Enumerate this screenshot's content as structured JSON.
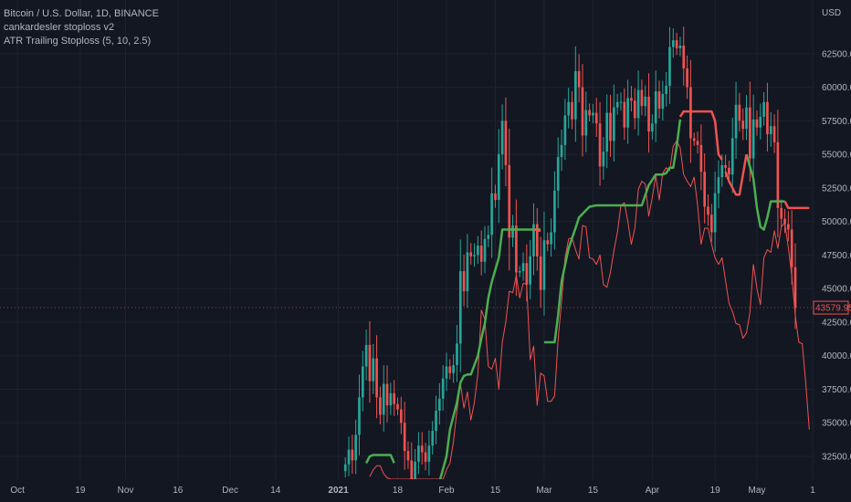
{
  "legend": {
    "symbol": "Bitcoin / U.S. Dollar, 1D, BINANCE",
    "indicator1": "cankardesler stoploss v2",
    "indicator2": "ATR Trailing Stoploss (5, 10, 2.5)"
  },
  "currency_label": "USD",
  "last_price_label": "43579.95",
  "colors": {
    "background": "#131722",
    "grid": "#1e2230",
    "up": "#26a69a",
    "down": "#ef5350",
    "stop_long": "#4caf50",
    "stop_short": "#ef5350",
    "atr_line": "#ef5350",
    "text": "#b2b5be"
  },
  "chart_data": {
    "type": "candlestick",
    "ylim": [
      30800,
      66500
    ],
    "y_ticks": [
      32500,
      35000,
      37500,
      40000,
      42500,
      45000,
      47500,
      50000,
      52500,
      55000,
      57500,
      60000,
      62500
    ],
    "y_tick_labels": [
      "32500.00",
      "35000.00",
      "37500.00",
      "40000.00",
      "42500.00",
      "45000.00",
      "47500.00",
      "50000.00",
      "52500.00",
      "55000.00",
      "57500.00",
      "60000.00",
      "62500.00"
    ],
    "x_ticks": [
      {
        "label": "Oct",
        "x": 0
      },
      {
        "label": "19",
        "x": 18
      },
      {
        "label": "Nov",
        "x": 31
      },
      {
        "label": "16",
        "x": 46
      },
      {
        "label": "Dec",
        "x": 61
      },
      {
        "label": "14",
        "x": 74
      },
      {
        "label": "2021",
        "x": 92
      },
      {
        "label": "18",
        "x": 109
      },
      {
        "label": "Feb",
        "x": 123
      },
      {
        "label": "15",
        "x": 137
      },
      {
        "label": "Mar",
        "x": 151
      },
      {
        "label": "15",
        "x": 165
      },
      {
        "label": "Apr",
        "x": 182
      },
      {
        "label": "19",
        "x": 200
      },
      {
        "label": "May",
        "x": 212
      },
      {
        "label": "1",
        "x": 228
      }
    ],
    "xlim": [
      -5,
      228.5
    ],
    "first_bar_x": 94,
    "closes": [
      31900,
      33000,
      32200,
      34100,
      36900,
      39200,
      40800,
      38100,
      39800,
      36900,
      35600,
      37900,
      36300,
      37200,
      36400,
      36000,
      35000,
      32900,
      32200,
      30400,
      32100,
      33300,
      32800,
      32100,
      33300,
      34400,
      35900,
      36800,
      38300,
      39200,
      38700,
      39300,
      40900,
      46300,
      44800,
      47700,
      47400,
      47500,
      48200,
      47000,
      48700,
      49000,
      52100,
      51600,
      55000,
      57500,
      54200,
      48800,
      49700,
      46200,
      46300,
      46900,
      45300,
      47400,
      49800,
      47400,
      44900,
      48600,
      48300,
      49200,
      52300,
      54800,
      55700,
      57900,
      58900,
      57600,
      61200,
      60000,
      56400,
      58300,
      57900,
      58100,
      57300,
      54100,
      55200,
      58100,
      56000,
      58500,
      58900,
      58900,
      57000,
      59200,
      59000,
      57700,
      59800,
      58600,
      59300,
      56700,
      57300,
      59700,
      58400,
      59500,
      60100,
      63000,
      63500,
      62900,
      63100,
      61400,
      60000,
      56200,
      56000,
      55700,
      53700,
      51100,
      50500,
      49200,
      52100,
      53300,
      54200,
      54000,
      53500,
      56200,
      58700,
      57500,
      56900,
      58500,
      54700,
      57600,
      57000,
      57800,
      58900,
      56500,
      57100,
      55900,
      51000,
      50200,
      49800,
      49400,
      46600,
      43580
    ],
    "long_stop_segments": [
      {
        "x": [
          100,
          101,
          102,
          103,
          104,
          105,
          106,
          107,
          108
        ],
        "y": [
          32000,
          32500,
          32600,
          32600,
          32600,
          32600,
          32600,
          32600,
          32000
        ]
      },
      {
        "x": [
          121,
          123,
          124,
          126,
          127,
          128,
          129,
          130,
          132,
          133,
          134,
          135,
          136,
          138,
          139,
          142,
          144,
          146,
          148,
          150
        ],
        "y": [
          30600,
          32500,
          34500,
          36500,
          38000,
          38500,
          38600,
          38600,
          40000,
          41300,
          42400,
          44300,
          45500,
          47300,
          49400,
          49400,
          49400,
          49400,
          49400,
          49400
        ]
      },
      {
        "x": [
          151,
          152,
          154,
          155,
          156,
          158,
          160,
          161,
          164,
          166,
          168,
          170,
          171,
          172,
          173,
          175,
          176,
          179,
          181,
          183,
          184,
          185,
          186,
          187,
          188,
          189,
          190
        ],
        "y": [
          41000,
          41000,
          41000,
          43000,
          45500,
          48000,
          49500,
          50300,
          51100,
          51200,
          51200,
          51200,
          51200,
          51200,
          51200,
          51200,
          51200,
          51200,
          52700,
          53500,
          53500,
          53500,
          53600,
          54000,
          54000,
          55600,
          57600
        ]
      },
      {
        "x": [
          209,
          210,
          211,
          212,
          213,
          214,
          215,
          216,
          217,
          218,
          219,
          220
        ],
        "y": [
          55000,
          54100,
          53200,
          51000,
          49600,
          49400,
          50300,
          51500,
          51500,
          51500,
          51500,
          51500
        ]
      }
    ],
    "short_stop_segments": [
      {
        "x": [
          148,
          150
        ],
        "y": [
          49400,
          49300
        ]
      },
      {
        "x": [
          190,
          191,
          193,
          194,
          196,
          198,
          199,
          200,
          201,
          202
        ],
        "y": [
          57800,
          58200,
          58200,
          58200,
          58200,
          58200,
          58200,
          57500,
          55000,
          54600
        ]
      },
      {
        "x": [
          203,
          204,
          205,
          206,
          207,
          209
        ],
        "y": [
          53700,
          53000,
          52500,
          52000,
          52000,
          55000
        ]
      },
      {
        "x": [
          220,
          221,
          222,
          223,
          224,
          225,
          226,
          227
        ],
        "y": [
          51500,
          51000,
          51000,
          51000,
          51000,
          51000,
          51000,
          51000
        ]
      }
    ],
    "atr_stop": {
      "x": [
        101,
        102,
        103,
        104,
        105,
        106,
        107,
        108,
        109,
        110,
        111,
        112,
        113,
        114,
        115,
        116,
        117,
        118,
        119,
        120,
        121,
        122,
        123,
        124,
        125,
        126,
        127,
        128,
        129,
        130,
        131,
        132,
        133,
        134,
        135,
        136,
        137,
        138,
        139,
        140,
        141,
        142,
        143,
        144,
        145,
        146,
        147,
        148,
        149,
        150,
        151,
        152,
        153,
        154,
        155,
        156,
        157,
        158,
        159,
        160,
        161,
        162,
        163,
        164,
        165,
        166,
        167,
        168,
        169,
        170,
        171,
        172,
        173,
        174,
        175,
        176,
        177,
        178,
        179,
        180,
        181,
        182,
        183,
        184,
        185,
        186,
        187,
        188,
        189,
        190,
        191,
        192,
        193,
        194,
        195,
        196,
        197,
        198,
        199,
        200,
        201,
        202,
        203,
        204,
        205,
        206,
        207,
        208,
        209,
        210,
        211,
        212,
        213,
        214,
        215,
        216,
        217,
        218,
        219,
        220,
        221,
        222,
        223,
        224,
        225,
        226,
        227
      ],
      "y": [
        31000,
        31500,
        31800,
        31800,
        31200,
        30900,
        30800,
        30800,
        30800,
        30800,
        30800,
        30800,
        30800,
        30800,
        30800,
        30800,
        30800,
        30800,
        30800,
        30800,
        30800,
        30800,
        31500,
        32000,
        33600,
        35900,
        37900,
        36100,
        37300,
        35200,
        36500,
        38700,
        43400,
        42700,
        39200,
        39000,
        39800,
        37500,
        41000,
        42500,
        44800,
        44700,
        46000,
        44300,
        45400,
        45300,
        39700,
        40700,
        36300,
        38700,
        38500,
        36600,
        36600,
        37000,
        41200,
        44000,
        47300,
        48700,
        48800,
        47900,
        47200,
        49700,
        49600,
        47300,
        47200,
        46800,
        47500,
        45300,
        45100,
        46200,
        47800,
        49200,
        51200,
        51400,
        50000,
        48300,
        49500,
        52400,
        53000,
        52800,
        50400,
        51800,
        53400,
        51600,
        53600,
        54000,
        53800,
        55600,
        56000,
        55500,
        53500,
        53000,
        52600,
        53300,
        51200,
        48300,
        49500,
        49500,
        48300,
        47300,
        46800,
        47300,
        45600,
        43900,
        43300,
        42400,
        42300,
        41300,
        41700,
        43200,
        46800,
        45000,
        43800,
        47300,
        47900,
        47700,
        49300,
        48000,
        49600,
        49900,
        48100,
        45900,
        43000,
        41000,
        40900,
        38000,
        34500
      ]
    }
  }
}
